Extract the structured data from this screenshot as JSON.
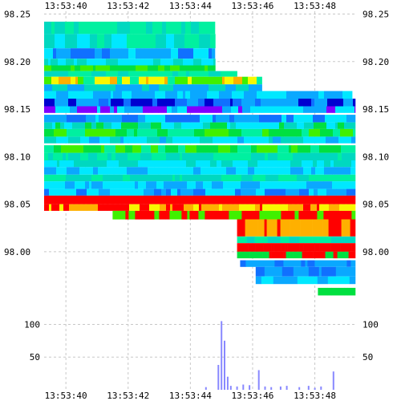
{
  "chart_data": {
    "type": "heatmap",
    "title": "",
    "xlabel": "",
    "ylabel": "",
    "x_ticks": [
      "13:53:40",
      "13:53:42",
      "13:53:44",
      "13:53:46",
      "13:53:48"
    ],
    "x_range": [
      "13:53:39.3",
      "13:53:49.3"
    ],
    "price_axis": {
      "ticks": [
        "98.25",
        "98.20",
        "98.15",
        "98.10",
        "98.05",
        "98.00"
      ],
      "range": [
        97.956,
        98.258
      ],
      "grid": true
    },
    "volume_axis": {
      "ticks": [
        "100",
        "50"
      ],
      "range": [
        0,
        130
      ],
      "grid": true
    },
    "legend": "none",
    "colors": {
      "cyan": "#00e8ff",
      "aqua_green": "#00f0a0",
      "teal": "#00d8c0",
      "sky": "#0aa8ff",
      "blue": "#1070ff",
      "green": "#00e040",
      "lime": "#40f000",
      "yellow": "#f8f800",
      "orange": "#ffb000",
      "red": "#ff0000",
      "purple": "#8000ff",
      "navy": "#0000d0",
      "volume_bar": "#8888ff"
    },
    "heatmap_bands": [
      {
        "price_top": 98.242,
        "price_bottom": 98.229,
        "time_start": "13:53:39.3",
        "time_end": "13:53:44.8",
        "colors": [
          "aqua_green",
          "teal"
        ]
      },
      {
        "price_top": 98.229,
        "price_bottom": 98.214,
        "time_start": "13:53:39.3",
        "time_end": "13:53:44.8",
        "colors": [
          "cyan",
          "teal",
          "aqua_green"
        ]
      },
      {
        "price_top": 98.214,
        "price_bottom": 98.203,
        "time_start": "13:53:39.3",
        "time_end": "13:53:44.8",
        "colors": [
          "sky",
          "cyan",
          "blue"
        ]
      },
      {
        "price_top": 98.203,
        "price_bottom": 98.196,
        "time_start": "13:53:39.3",
        "time_end": "13:53:44.8",
        "colors": [
          "teal",
          "cyan"
        ]
      },
      {
        "price_top": 98.196,
        "price_bottom": 98.19,
        "time_start": "13:53:39.3",
        "time_end": "13:53:44.8",
        "colors": [
          "green",
          "lime"
        ]
      },
      {
        "price_top": 98.19,
        "price_bottom": 98.184,
        "time_start": "13:53:39.3",
        "time_end": "13:53:45.5",
        "colors": [
          "teal",
          "aqua_green"
        ]
      },
      {
        "price_top": 98.184,
        "price_bottom": 98.176,
        "time_start": "13:53:39.3",
        "time_end": "13:53:46.3",
        "colors": [
          "yellow",
          "orange",
          "aqua_green",
          "lime"
        ]
      },
      {
        "price_top": 98.176,
        "price_bottom": 98.169,
        "time_start": "13:53:39.3",
        "time_end": "13:53:46.3",
        "colors": [
          "sky",
          "teal"
        ]
      },
      {
        "price_top": 98.169,
        "price_bottom": 98.161,
        "time_start": "13:53:39.3",
        "time_end": "13:53:49.2",
        "colors": [
          "sky",
          "cyan"
        ]
      },
      {
        "price_top": 98.161,
        "price_bottom": 98.153,
        "time_start": "13:53:39.3",
        "time_end": "13:53:49.3",
        "colors": [
          "navy",
          "blue",
          "sky"
        ]
      },
      {
        "price_top": 98.153,
        "price_bottom": 98.146,
        "time_start": "13:53:39.3",
        "time_end": "13:53:49.3",
        "colors": [
          "purple",
          "sky",
          "cyan"
        ]
      },
      {
        "price_top": 98.144,
        "price_bottom": 98.136,
        "time_start": "13:53:39.3",
        "time_end": "13:53:49.3",
        "colors": [
          "blue",
          "sky",
          "cyan"
        ]
      },
      {
        "price_top": 98.136,
        "price_bottom": 98.129,
        "time_start": "13:53:39.3",
        "time_end": "13:53:49.3",
        "colors": [
          "teal",
          "green",
          "cyan"
        ]
      },
      {
        "price_top": 98.129,
        "price_bottom": 98.121,
        "time_start": "13:53:39.3",
        "time_end": "13:53:49.3",
        "colors": [
          "green",
          "lime",
          "aqua_green"
        ]
      },
      {
        "price_top": 98.121,
        "price_bottom": 98.114,
        "time_start": "13:53:39.3",
        "time_end": "13:53:49.3",
        "colors": [
          "cyan",
          "sky",
          "teal"
        ]
      },
      {
        "price_top": 98.112,
        "price_bottom": 98.104,
        "time_start": "13:53:39.3",
        "time_end": "13:53:49.3",
        "colors": [
          "lime",
          "green",
          "aqua_green"
        ]
      },
      {
        "price_top": 98.104,
        "price_bottom": 98.096,
        "time_start": "13:53:39.3",
        "time_end": "13:53:49.3",
        "colors": [
          "teal",
          "aqua_green"
        ]
      },
      {
        "price_top": 98.096,
        "price_bottom": 98.089,
        "time_start": "13:53:39.3",
        "time_end": "13:53:49.3",
        "colors": [
          "cyan",
          "teal"
        ]
      },
      {
        "price_top": 98.089,
        "price_bottom": 98.081,
        "time_start": "13:53:39.3",
        "time_end": "13:53:49.3",
        "colors": [
          "cyan",
          "sky"
        ]
      },
      {
        "price_top": 98.081,
        "price_bottom": 98.074,
        "time_start": "13:53:39.3",
        "time_end": "13:53:49.3",
        "colors": [
          "teal",
          "aqua_green"
        ]
      },
      {
        "price_top": 98.074,
        "price_bottom": 98.066,
        "time_start": "13:53:39.3",
        "time_end": "13:53:49.3",
        "colors": [
          "cyan",
          "sky"
        ]
      },
      {
        "price_top": 98.066,
        "price_bottom": 98.059,
        "time_start": "13:53:39.3",
        "time_end": "13:53:49.3",
        "colors": [
          "sky",
          "blue",
          "cyan"
        ]
      },
      {
        "price_top": 98.059,
        "price_bottom": 98.05,
        "time_start": "13:53:39.3",
        "time_end": "13:53:49.3",
        "colors": [
          "red"
        ]
      },
      {
        "price_top": 98.05,
        "price_bottom": 98.043,
        "time_start": "13:53:39.3",
        "time_end": "13:53:49.3",
        "colors": [
          "yellow",
          "orange",
          "red"
        ]
      },
      {
        "price_top": 98.043,
        "price_bottom": 98.034,
        "time_start": "13:53:41.5",
        "time_end": "13:53:49.3",
        "colors": [
          "red",
          "lime"
        ]
      },
      {
        "price_top": 98.034,
        "price_bottom": 98.016,
        "time_start": "13:53:45.5",
        "time_end": "13:53:49.3",
        "colors": [
          "red",
          "orange"
        ]
      },
      {
        "price_top": 98.016,
        "price_bottom": 98.009,
        "time_start": "13:53:45.5",
        "time_end": "13:53:49.3",
        "colors": [
          "aqua_green",
          "teal"
        ]
      },
      {
        "price_top": 98.009,
        "price_bottom": 98.0,
        "time_start": "13:53:45.5",
        "time_end": "13:53:49.3",
        "colors": [
          "red"
        ]
      },
      {
        "price_top": 98.0,
        "price_bottom": 97.993,
        "time_start": "13:53:45.5",
        "time_end": "13:53:49.3",
        "colors": [
          "green",
          "red"
        ]
      },
      {
        "price_top": 97.991,
        "price_bottom": 97.984,
        "time_start": "13:53:45.6",
        "time_end": "13:53:49.3",
        "colors": [
          "blue",
          "sky"
        ]
      },
      {
        "price_top": 97.984,
        "price_bottom": 97.974,
        "time_start": "13:53:46.1",
        "time_end": "13:53:49.3",
        "colors": [
          "blue",
          "sky"
        ]
      },
      {
        "price_top": 97.974,
        "price_bottom": 97.966,
        "time_start": "13:53:46.1",
        "time_end": "13:53:49.3",
        "colors": [
          "sky",
          "cyan"
        ]
      },
      {
        "price_top": 97.962,
        "price_bottom": 97.954,
        "time_start": "13:53:48.1",
        "time_end": "13:53:49.3",
        "colors": [
          "green"
        ]
      }
    ],
    "volume_bars": [
      {
        "time": "13:53:44.5",
        "value": 4
      },
      {
        "time": "13:53:44.9",
        "value": 38
      },
      {
        "time": "13:53:45.0",
        "value": 105
      },
      {
        "time": "13:53:45.1",
        "value": 75
      },
      {
        "time": "13:53:45.2",
        "value": 20
      },
      {
        "time": "13:53:45.3",
        "value": 6
      },
      {
        "time": "13:53:45.5",
        "value": 5
      },
      {
        "time": "13:53:45.7",
        "value": 8
      },
      {
        "time": "13:53:45.9",
        "value": 7
      },
      {
        "time": "13:53:46.2",
        "value": 30
      },
      {
        "time": "13:53:46.4",
        "value": 5
      },
      {
        "time": "13:53:46.6",
        "value": 4
      },
      {
        "time": "13:53:46.9",
        "value": 5
      },
      {
        "time": "13:53:47.1",
        "value": 6
      },
      {
        "time": "13:53:47.5",
        "value": 4
      },
      {
        "time": "13:53:47.8",
        "value": 6
      },
      {
        "time": "13:53:48.0",
        "value": 3
      },
      {
        "time": "13:53:48.2",
        "value": 5
      },
      {
        "time": "13:53:48.6",
        "value": 28
      }
    ]
  }
}
